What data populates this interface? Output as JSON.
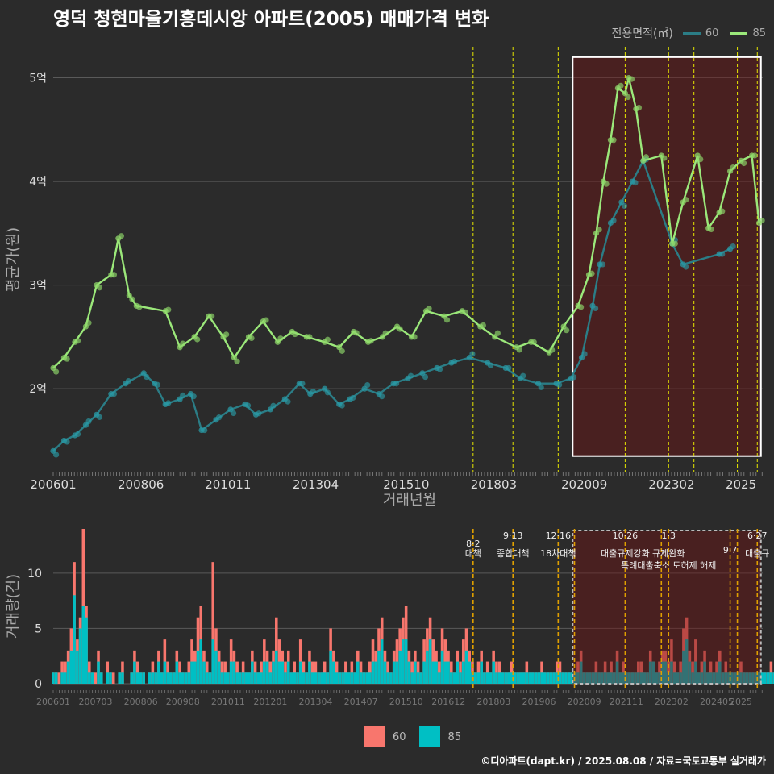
{
  "title": "영덕 청현마을기흥데시앙 아파트(2005) 매매가격 변화",
  "credit": "©디아파트(dapt.kr) / 2025.08.08 / 자료=국토교통부 실거래가",
  "colors": {
    "s60_line": "#2b7d86",
    "s60_pt": "#2a9aa5",
    "s85_line": "#9be87a",
    "s85_pt": "#8fd86a",
    "bar60": "#f8766d",
    "bar85": "#00bfc4",
    "vline": "#e6e600",
    "vline2": "#e0a000"
  },
  "chart_data": [
    {
      "type": "line",
      "title": "영덕 청현마을기흥데시앙 아파트(2005) 매매가격 변화",
      "xlabel": "거래년월",
      "ylabel": "평균가(원)",
      "x_ticks": [
        "200601",
        "200806",
        "201011",
        "201304",
        "201510",
        "201803",
        "202009",
        "202302",
        "2025"
      ],
      "y_ticks": [
        "2억",
        "3억",
        "4억",
        "5억"
      ],
      "y_tick_values": [
        2,
        3,
        4,
        5
      ],
      "ylim": [
        1.2,
        5.3
      ],
      "legend_title": "전용면적(㎡)",
      "legend_position": "top-right",
      "series": [
        {
          "name": "60",
          "points": [
            [
              2006.0,
              1.4
            ],
            [
              2006.3,
              1.5
            ],
            [
              2006.6,
              1.55
            ],
            [
              2006.9,
              1.65
            ],
            [
              2007.2,
              1.75
            ],
            [
              2007.6,
              1.95
            ],
            [
              2008.0,
              2.05
            ],
            [
              2008.5,
              2.15
            ],
            [
              2008.8,
              2.05
            ],
            [
              2009.1,
              1.85
            ],
            [
              2009.5,
              1.9
            ],
            [
              2009.8,
              1.95
            ],
            [
              2010.1,
              1.6
            ],
            [
              2010.5,
              1.7
            ],
            [
              2010.9,
              1.8
            ],
            [
              2011.3,
              1.85
            ],
            [
              2011.6,
              1.75
            ],
            [
              2012.0,
              1.8
            ],
            [
              2012.4,
              1.9
            ],
            [
              2012.8,
              2.05
            ],
            [
              2013.1,
              1.95
            ],
            [
              2013.5,
              2.0
            ],
            [
              2013.9,
              1.85
            ],
            [
              2014.2,
              1.9
            ],
            [
              2014.6,
              2.0
            ],
            [
              2015.0,
              1.95
            ],
            [
              2015.4,
              2.05
            ],
            [
              2015.8,
              2.1
            ],
            [
              2016.2,
              2.15
            ],
            [
              2016.6,
              2.2
            ],
            [
              2017.0,
              2.25
            ],
            [
              2017.5,
              2.3
            ],
            [
              2018.0,
              2.25
            ],
            [
              2018.5,
              2.2
            ],
            [
              2018.9,
              2.1
            ],
            [
              2019.4,
              2.05
            ],
            [
              2019.9,
              2.05
            ],
            [
              2020.3,
              2.1
            ],
            [
              2020.6,
              2.3
            ],
            [
              2020.9,
              2.8
            ],
            [
              2021.1,
              3.2
            ],
            [
              2021.4,
              3.6
            ],
            [
              2021.7,
              3.8
            ],
            [
              2022.0,
              4.0
            ],
            [
              2022.3,
              4.2
            ],
            [
              2023.1,
              3.4
            ],
            [
              2023.4,
              3.2
            ],
            [
              2024.4,
              3.3
            ],
            [
              2024.7,
              3.35
            ]
          ]
        },
        {
          "name": "85",
          "points": [
            [
              2006.0,
              2.2
            ],
            [
              2006.3,
              2.3
            ],
            [
              2006.6,
              2.45
            ],
            [
              2006.9,
              2.6
            ],
            [
              2007.2,
              3.0
            ],
            [
              2007.6,
              3.1
            ],
            [
              2007.8,
              3.45
            ],
            [
              2008.1,
              2.9
            ],
            [
              2008.3,
              2.8
            ],
            [
              2009.1,
              2.75
            ],
            [
              2009.5,
              2.4
            ],
            [
              2009.9,
              2.5
            ],
            [
              2010.3,
              2.7
            ],
            [
              2010.7,
              2.5
            ],
            [
              2011.0,
              2.3
            ],
            [
              2011.4,
              2.5
            ],
            [
              2011.8,
              2.65
            ],
            [
              2012.2,
              2.45
            ],
            [
              2012.6,
              2.55
            ],
            [
              2013.0,
              2.5
            ],
            [
              2013.5,
              2.45
            ],
            [
              2013.9,
              2.4
            ],
            [
              2014.3,
              2.55
            ],
            [
              2014.7,
              2.45
            ],
            [
              2015.1,
              2.5
            ],
            [
              2015.5,
              2.6
            ],
            [
              2015.9,
              2.5
            ],
            [
              2016.3,
              2.75
            ],
            [
              2016.8,
              2.7
            ],
            [
              2017.3,
              2.75
            ],
            [
              2017.8,
              2.6
            ],
            [
              2018.2,
              2.5
            ],
            [
              2018.8,
              2.4
            ],
            [
              2019.2,
              2.45
            ],
            [
              2019.7,
              2.35
            ],
            [
              2020.1,
              2.6
            ],
            [
              2020.5,
              2.8
            ],
            [
              2020.8,
              3.1
            ],
            [
              2021.0,
              3.5
            ],
            [
              2021.2,
              4.0
            ],
            [
              2021.4,
              4.4
            ],
            [
              2021.6,
              4.9
            ],
            [
              2021.8,
              4.85
            ],
            [
              2021.9,
              5.0
            ],
            [
              2022.1,
              4.7
            ],
            [
              2022.3,
              4.2
            ],
            [
              2022.8,
              4.25
            ],
            [
              2023.1,
              3.4
            ],
            [
              2023.4,
              3.8
            ],
            [
              2023.8,
              4.25
            ],
            [
              2024.1,
              3.55
            ],
            [
              2024.4,
              3.7
            ],
            [
              2024.7,
              4.1
            ],
            [
              2025.0,
              4.2
            ],
            [
              2025.3,
              4.25
            ],
            [
              2025.5,
              3.6
            ]
          ]
        }
      ],
      "highlight_box": {
        "x": [
          2020.35,
          2025.55
        ],
        "y": [
          1.35,
          5.2
        ]
      }
    },
    {
      "type": "bar",
      "title": "",
      "xlabel": "",
      "ylabel": "거래량(건)",
      "x_ticks": [
        "200601",
        "200703",
        "200806",
        "200908",
        "201011",
        "201201",
        "201304",
        "201407",
        "201510",
        "201612",
        "201803",
        "201906",
        "202009",
        "202111",
        "202302",
        "202405",
        "2025"
      ],
      "y_ticks": [
        "0",
        "5",
        "10"
      ],
      "y_tick_values": [
        0,
        5,
        10
      ],
      "ylim": [
        0,
        14
      ],
      "stacked": true,
      "legend_position": "bottom",
      "series": [
        {
          "name": "60"
        },
        {
          "name": "85"
        }
      ],
      "months_start": 2006.0,
      "bars60": [
        1,
        1,
        1,
        2,
        2,
        3,
        5,
        11,
        4,
        6,
        14,
        7,
        2,
        1,
        1,
        3,
        1,
        0,
        2,
        1,
        1,
        0,
        1,
        2,
        0,
        0,
        1,
        3,
        2,
        1,
        1,
        0,
        1,
        2,
        1,
        3,
        1,
        4,
        2,
        1,
        1,
        3,
        2,
        1,
        1,
        2,
        4,
        3,
        6,
        7,
        3,
        2,
        1,
        11,
        5,
        3,
        2,
        2,
        1,
        4,
        3,
        2,
        1,
        2,
        1,
        1,
        3,
        2,
        1,
        2,
        4,
        3,
        2,
        3,
        6,
        4,
        3,
        2,
        3,
        1,
        2,
        1,
        4,
        2,
        1,
        3,
        2,
        2,
        1,
        1,
        2,
        1,
        5,
        3,
        2,
        1,
        1,
        2,
        1,
        2,
        1,
        3,
        2,
        1,
        1,
        2,
        4,
        3,
        5,
        6,
        3,
        2,
        1,
        3,
        4,
        5,
        6,
        7,
        3,
        2,
        3,
        2,
        1,
        4,
        5,
        6,
        4,
        3,
        2,
        5,
        4,
        3,
        2,
        1,
        3,
        2,
        4,
        5,
        3,
        2,
        1,
        2,
        3,
        1,
        2,
        1,
        3,
        2,
        2,
        1,
        1,
        1,
        2,
        1,
        1,
        1,
        1,
        2,
        1,
        1,
        1,
        1,
        2,
        1,
        1,
        1,
        1,
        2,
        2,
        1,
        1,
        1,
        1,
        1,
        2,
        3,
        1,
        1,
        1,
        1,
        2,
        1,
        1,
        2,
        1,
        2,
        1,
        3,
        1,
        2,
        1,
        1,
        1,
        1,
        2,
        2,
        1,
        1,
        3,
        2,
        1,
        2,
        3,
        3,
        2,
        4,
        2,
        1,
        2,
        5,
        6,
        3,
        2,
        4,
        1,
        2,
        3,
        1,
        2,
        1,
        2,
        3,
        1,
        2,
        1,
        1,
        1,
        1,
        2,
        1,
        1,
        1,
        1,
        1,
        1,
        1,
        1,
        1,
        2,
        1,
        1,
        1,
        2,
        1,
        2,
        1,
        1,
        1,
        1,
        1,
        1,
        1,
        1,
        2,
        1,
        1,
        1,
        1,
        1
      ],
      "bars85": [
        1,
        1,
        0,
        1,
        1,
        2,
        3,
        8,
        3,
        5,
        7,
        6,
        1,
        1,
        0,
        2,
        1,
        0,
        1,
        1,
        0,
        0,
        1,
        1,
        0,
        0,
        1,
        2,
        1,
        1,
        1,
        0,
        1,
        1,
        1,
        2,
        1,
        2,
        1,
        1,
        1,
        2,
        1,
        1,
        1,
        1,
        2,
        2,
        3,
        4,
        2,
        1,
        1,
        4,
        3,
        2,
        1,
        1,
        1,
        2,
        2,
        1,
        1,
        1,
        1,
        1,
        2,
        1,
        1,
        1,
        2,
        2,
        1,
        2,
        3,
        2,
        2,
        1,
        2,
        1,
        1,
        1,
        2,
        1,
        1,
        2,
        1,
        1,
        1,
        1,
        1,
        1,
        3,
        2,
        1,
        1,
        1,
        1,
        1,
        1,
        1,
        2,
        1,
        1,
        1,
        1,
        2,
        2,
        3,
        4,
        2,
        1,
        1,
        2,
        2,
        3,
        4,
        4,
        2,
        1,
        2,
        1,
        1,
        2,
        3,
        4,
        2,
        2,
        1,
        3,
        2,
        2,
        1,
        1,
        2,
        1,
        2,
        3,
        2,
        1,
        1,
        1,
        2,
        1,
        1,
        1,
        2,
        1,
        1,
        1,
        1,
        1,
        1,
        1,
        1,
        1,
        1,
        1,
        1,
        1,
        1,
        1,
        1,
        1,
        1,
        1,
        1,
        1,
        1,
        1,
        1,
        1,
        1,
        1,
        1,
        2,
        1,
        1,
        1,
        1,
        1,
        1,
        1,
        1,
        1,
        1,
        1,
        2,
        1,
        1,
        1,
        1,
        1,
        1,
        1,
        1,
        1,
        1,
        2,
        2,
        1,
        1,
        2,
        2,
        1,
        2,
        1,
        1,
        1,
        3,
        4,
        2,
        1,
        2,
        1,
        1,
        2,
        1,
        1,
        1,
        1,
        2,
        1,
        1,
        1,
        1,
        1,
        1,
        1,
        1,
        1,
        1,
        1,
        1,
        1,
        1,
        1,
        1,
        1,
        1,
        1,
        1,
        1,
        1,
        1,
        1,
        1,
        1,
        1,
        1,
        1,
        1,
        1,
        1,
        1,
        1,
        1,
        1,
        1,
        1
      ],
      "annotations": [
        {
          "x": 2017.6,
          "date": "8·2",
          "label": "대책"
        },
        {
          "x": 2018.7,
          "date": "9·13",
          "label": "종합대책"
        },
        {
          "x": 2019.95,
          "date": "12·16",
          "label": "18차대책"
        },
        {
          "x": 2021.8,
          "date": "10·26",
          "label": "대출규제강화"
        },
        {
          "x": 2023.0,
          "date": "1·3",
          "label": "규제완화"
        },
        {
          "x": 2023.0,
          "date": "",
          "label": "특례대출축소 토허제 해제"
        },
        {
          "x": 2024.7,
          "date": "9·7",
          "label": ""
        },
        {
          "x": 2025.45,
          "date": "6·27",
          "label": "대출규"
        }
      ],
      "highlight_box": {
        "x": [
          2020.35,
          2025.55
        ]
      }
    }
  ],
  "vlines_price": [
    2017.6,
    2018.7,
    2019.95,
    2021.8,
    2023.0,
    2023.7,
    2024.9,
    2025.45
  ],
  "vlines_volume": [
    2017.6,
    2018.7,
    2019.95,
    2020.4,
    2021.8,
    2022.8,
    2023.0,
    2024.7,
    2024.9,
    2025.45
  ]
}
